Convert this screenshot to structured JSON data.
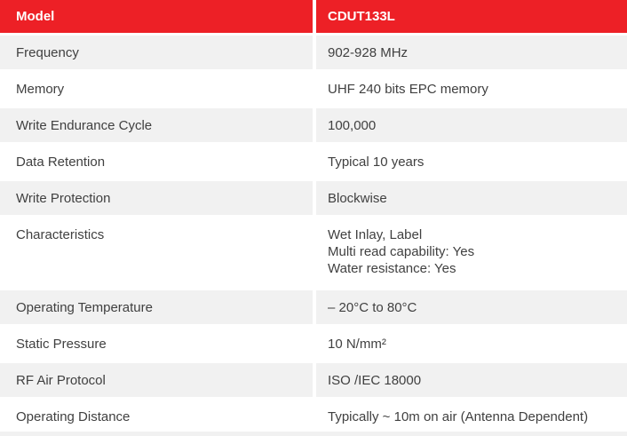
{
  "table": {
    "header": {
      "col1": "Model",
      "col2": "CDUT133L"
    },
    "rows": [
      {
        "label": "Frequency",
        "value": "902-928 MHz"
      },
      {
        "label": "Memory",
        "value": "UHF 240 bits EPC memory"
      },
      {
        "label": "Write Endurance Cycle",
        "value": "100,000"
      },
      {
        "label": "Data Retention",
        "value": "Typical 10 years"
      },
      {
        "label": "Write Protection",
        "value": "Blockwise"
      },
      {
        "label": "Characteristics",
        "value": "Wet Inlay, Label\nMulti read capability: Yes\nWater resistance: Yes"
      },
      {
        "label": "Operating Temperature",
        "value": "– 20°C to 80°C"
      },
      {
        "label": "Static Pressure",
        "value": "10 N/mm²"
      },
      {
        "label": "RF Air Protocol",
        "value": "ISO /IEC 18000"
      },
      {
        "label": "Operating Distance",
        "value": "Typically ~ 10m on air (Antenna Dependent)"
      }
    ],
    "colors": {
      "header_bg": "#ed2026",
      "row_alt_bg": "#f1f1f1",
      "header_text": "#ffffff",
      "body_text": "#404040"
    }
  }
}
